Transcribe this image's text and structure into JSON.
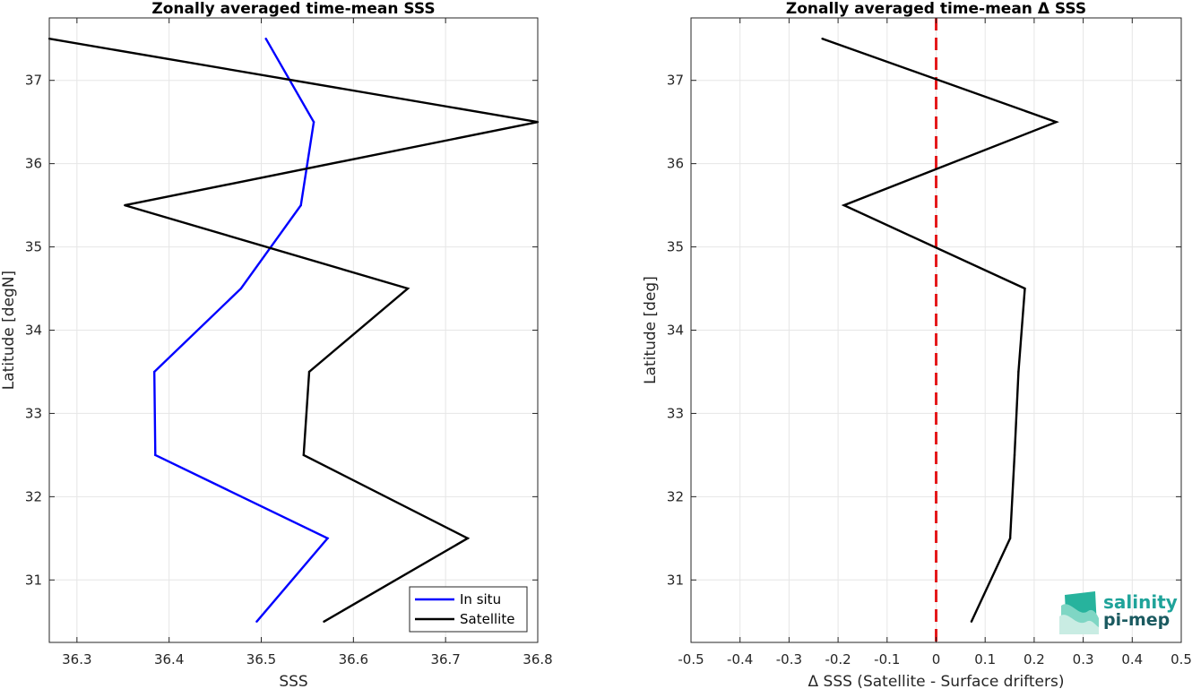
{
  "colors": {
    "in_situ": "#0000ff",
    "satellite": "#000000",
    "zero_line": "#e41a1c",
    "grid": "#e6e6e6",
    "logo_primary": "#1fa39a",
    "logo_secondary": "#1b5a60"
  },
  "logo": {
    "line1": "salinity",
    "line2": "pi-mep",
    "icon": "salinity-waves-icon"
  },
  "chart_data": [
    {
      "type": "line",
      "title": "Zonally averaged time-mean SSS",
      "xlabel": "SSS",
      "ylabel": "Latitude [degN]",
      "xlim": [
        36.27,
        36.8
      ],
      "ylim": [
        30.25,
        37.75
      ],
      "xticks": [
        "36.3",
        "36.4",
        "36.5",
        "36.6",
        "36.7",
        "36.8"
      ],
      "yticks": [
        "31",
        "32",
        "33",
        "34",
        "35",
        "36",
        "37"
      ],
      "grid": true,
      "legend": "bottom-right",
      "series": [
        {
          "name": "In situ",
          "color_key": "in_situ",
          "points": [
            {
              "x": 36.505,
              "y": 37.5
            },
            {
              "x": 36.557,
              "y": 36.5
            },
            {
              "x": 36.543,
              "y": 35.5
            },
            {
              "x": 36.478,
              "y": 34.5
            },
            {
              "x": 36.384,
              "y": 33.5
            },
            {
              "x": 36.385,
              "y": 32.5
            },
            {
              "x": 36.572,
              "y": 31.5
            },
            {
              "x": 36.495,
              "y": 30.5
            }
          ]
        },
        {
          "name": "Satellite",
          "color_key": "satellite",
          "points": [
            {
              "x": 36.27,
              "y": 37.5
            },
            {
              "x": 36.8,
              "y": 36.5
            },
            {
              "x": 36.352,
              "y": 35.5
            },
            {
              "x": 36.659,
              "y": 34.5
            },
            {
              "x": 36.552,
              "y": 33.5
            },
            {
              "x": 36.546,
              "y": 32.5
            },
            {
              "x": 36.724,
              "y": 31.5
            },
            {
              "x": 36.568,
              "y": 30.5
            }
          ]
        }
      ]
    },
    {
      "type": "line",
      "title": "Zonally averaged time-mean Δ SSS",
      "xlabel": "Δ SSS (Satellite - Surface drifters)",
      "ylabel": "Latitude [deg]",
      "xlim": [
        -0.5,
        0.5
      ],
      "ylim": [
        30.25,
        37.75
      ],
      "xticks": [
        "-0.5",
        "-0.4",
        "-0.3",
        "-0.2",
        "-0.1",
        "0",
        "0.1",
        "0.2",
        "0.3",
        "0.4",
        "0.5"
      ],
      "yticks": [
        "31",
        "32",
        "33",
        "34",
        "35",
        "36",
        "37"
      ],
      "grid": true,
      "reference_line": {
        "x": 0,
        "style": "dashed",
        "color_key": "zero_line"
      },
      "series": [
        {
          "color_key": "satellite",
          "points": [
            {
              "x": -0.232,
              "y": 37.5
            },
            {
              "x": 0.245,
              "y": 36.5
            },
            {
              "x": -0.188,
              "y": 35.5
            },
            {
              "x": 0.181,
              "y": 34.5
            },
            {
              "x": 0.168,
              "y": 33.5
            },
            {
              "x": 0.16,
              "y": 32.5
            },
            {
              "x": 0.151,
              "y": 31.5
            },
            {
              "x": 0.072,
              "y": 30.5
            }
          ]
        }
      ]
    }
  ]
}
